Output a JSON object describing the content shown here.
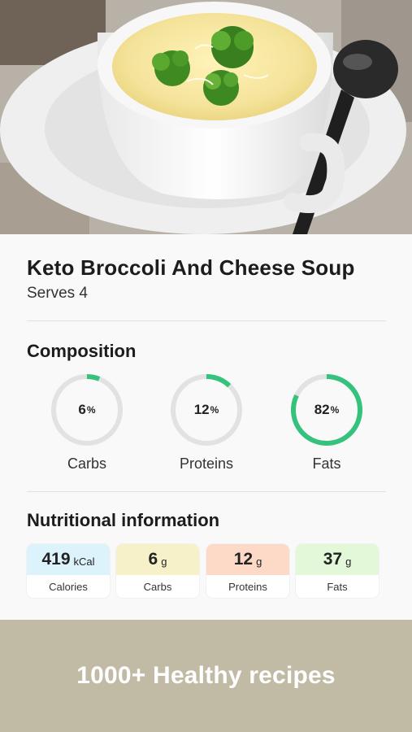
{
  "recipe": {
    "title": "Keto Broccoli And Cheese Soup",
    "serves": "Serves 4"
  },
  "composition": {
    "heading": "Composition",
    "items": [
      {
        "value": "6",
        "unit": "%",
        "label": "Carbs",
        "fraction": 0.06,
        "color": "#34c27d"
      },
      {
        "value": "12",
        "unit": "%",
        "label": "Proteins",
        "fraction": 0.12,
        "color": "#34c27d"
      },
      {
        "value": "82",
        "unit": "%",
        "label": "Fats",
        "fraction": 0.82,
        "color": "#34c27d"
      }
    ]
  },
  "nutrition": {
    "heading": "Nutritional information",
    "items": [
      {
        "value": "419",
        "unit": "kCal",
        "label": "Calories",
        "color": "#ddf3fb"
      },
      {
        "value": "6",
        "unit": "g",
        "label": "Carbs",
        "color": "#f7f1c9"
      },
      {
        "value": "12",
        "unit": "g",
        "label": "Proteins",
        "color": "#fcdac7"
      },
      {
        "value": "37",
        "unit": "g",
        "label": "Fats",
        "color": "#e2f8d9"
      }
    ]
  },
  "banner": {
    "text": "1000+ Healthy recipes"
  },
  "colors": {
    "ring_track": "#e2e2e2",
    "ring_fill": "#34c27d",
    "banner_bg": "#c1bba5"
  }
}
